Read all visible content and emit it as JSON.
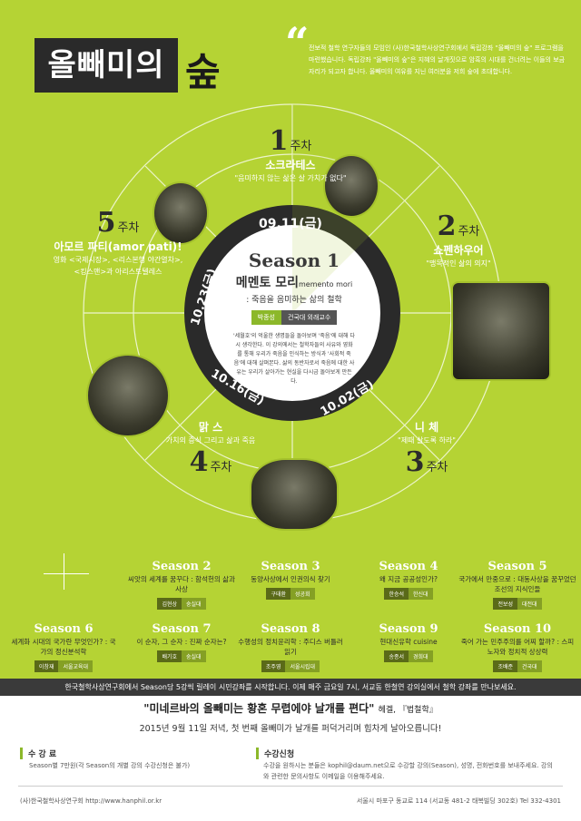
{
  "logo": {
    "text": "올빼미의",
    "sup": "숲"
  },
  "intro": "전보적 철학 연구자들의 모임인 (사)한국철학사상연구회에서 독립강좌 \"올빼미의 숲\" 프로그램을 마련했습니다. 독립강좌 \"올빼미의 숲\"은 지혜의 날개짓으로 암흑의 시대를 건너려는 이들의 보금자리가 되고자 합니다. 올빼미의 여유를 지닌 여러분을 저희 숲에 초대합니다.",
  "weeks": [
    {
      "num": "1",
      "ju": "주차",
      "name": "소크라테스",
      "sub": "\"음미하지 않는 삶은 살 가치가 없다\""
    },
    {
      "num": "2",
      "ju": "주차",
      "name": "쇼펜하우어",
      "sub": "\"맹목적인 삶의 의지\""
    },
    {
      "num": "3",
      "ju": "주차",
      "name": "니 체",
      "sub": "\"제때 살도록 하라\""
    },
    {
      "num": "4",
      "ju": "주차",
      "name": "맑 스",
      "sub": "가치의 증식 그리고 삶과 죽음"
    },
    {
      "num": "5",
      "ju": "주차",
      "name": "아모르 파티(amor pati)!",
      "sub": "영화 <국제시장>, <리스본행 야간열차>, <킹스맨>과 아리스토텔레스"
    }
  ],
  "dates": [
    "09.11(금)",
    "09.18(금)",
    "10.02(금)",
    "10.16(금)",
    "10.23(금)"
  ],
  "center": {
    "title": "Season 1",
    "mm": "메멘토 모리",
    "mm_en": "memento mori",
    "mm2": ": 죽음을 음미하는 삶의 철학",
    "lecturer": "박종성",
    "affil": "건국대 외래교수",
    "desc": "'세월호'의 억울한 생명들을 돌아보며 '죽음'에 대해 다시 생각한다. 이 강의에서는 철학자들의 사유와 영화를 통해 우리가 죽음을 인식하는 방식과 '사회적 죽음'에 대해 살펴본다. 삶의 동반자로서 죽음에 대한 사유는 우리가 살아가는 현실을 다시금 돌아보게 만든다."
  },
  "seasons": [
    {
      "t": "Season 2",
      "d": "씨앗의 세계를 꿈꾸다 : 함석헌의 삶과 사상",
      "p": "김현상",
      "a": "숭실대"
    },
    {
      "t": "Season 3",
      "d": "동양사상에서 인권의식 찾기",
      "p": "구태환",
      "a": "성공회"
    },
    {
      "t": "Season 4",
      "d": "왜 지금 공공성인가?",
      "p": "한승석",
      "a": "한신대"
    },
    {
      "t": "Season 5",
      "d": "국가에서 만중으로 : 대동사상을 꿈꾸었던 조선의 지식인들",
      "p": "전보성",
      "a": "대전대"
    },
    {
      "t": "Season 6",
      "d": "세계화 시대의 국가란 무엇인가? : 국가의 정신분석학",
      "p": "이창재",
      "a": "서울교육대"
    },
    {
      "t": "Season 7",
      "d": "이 순자, 그 순자 : 진짜 순자는?",
      "p": "배기호",
      "a": "숭실대"
    },
    {
      "t": "Season 8",
      "d": "수행성의 정치윤리학 : 주디스 버틀러 읽기",
      "p": "조주영",
      "a": "서울시립대"
    },
    {
      "t": "Season 9",
      "d": "현대신유학 cuisine",
      "p": "송종서",
      "a": "경희대"
    },
    {
      "t": "Season 10",
      "d": "죽어 가는 민주주의를 어찌 할까? : 스피노자와 정치적 상상력",
      "p": "조배준",
      "a": "건국대"
    }
  ],
  "bar": "한국철학사상연구회에서 Season당 5강씩 릴레이 시민강좌를 시작합니다. 이제 매주 금요일 7시, 서교동 한철연 강의실에서 철학 강좌를 만나보세요.",
  "big": "\"미네르바의 올빼미는 황혼 무렵에야 날개를 편다\"",
  "big_src": "헤겔, 『법철학』",
  "date": "2015년 9월 11일 저녁, 첫 번째 올빼미가 날개를 퍼덕거리며 힘차게 날아오릅니다!",
  "fee": {
    "title": "수 강 료",
    "text": "Season별 7만원(각 Season의 개별 강의 수강신청은 불가)"
  },
  "apply": {
    "title": "수강신청",
    "text": "수강을 원하시는 분들은 kophil@daum.net으로 수강할 강의(Season), 성명, 전화번호를 보내주세요. 강의와 관련한 문의사항도 이메일을 이용해주세요."
  },
  "footer_left": "(사)한국철학사상연구회 http://www.hanphil.or.kr",
  "footer_right": "서울시 마포구 동교로 114 (서교동 481-2 태복빌딩 302호)  Tel 332-4301"
}
